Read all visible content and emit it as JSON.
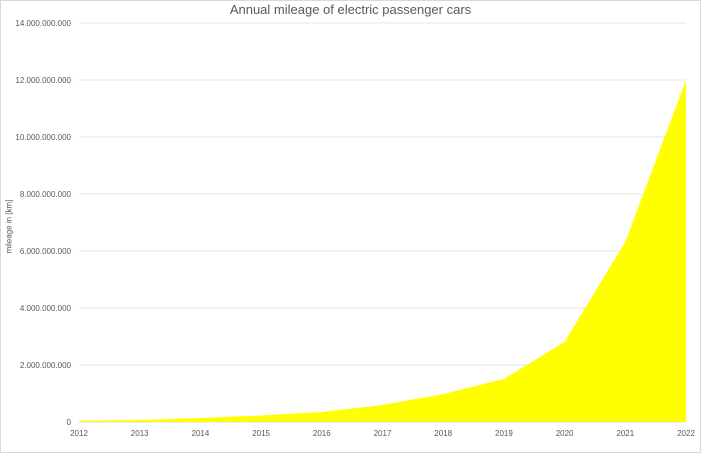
{
  "chart_data": {
    "type": "area",
    "title": "Annual mileage of electric passenger cars",
    "xlabel": "",
    "ylabel": "mileage in [km]",
    "categories": [
      "2012",
      "2013",
      "2014",
      "2015",
      "2016",
      "2017",
      "2018",
      "2019",
      "2020",
      "2021",
      "2022"
    ],
    "series": [
      {
        "name": "Annual mileage",
        "color": "#ffff00",
        "values": [
          40000000,
          70000000,
          140000000,
          230000000,
          350000000,
          600000000,
          980000000,
          1510000000,
          2810000000,
          6320000000,
          12000000000
        ]
      }
    ],
    "ylim": [
      0,
      14000000000
    ],
    "yticks": [
      0,
      2000000000,
      4000000000,
      6000000000,
      8000000000,
      10000000000,
      12000000000,
      14000000000
    ],
    "ytick_labels": [
      "0",
      "2.000.000.000",
      "4.000.000.000",
      "6.000.000.000",
      "8.000.000.000",
      "10.000.000.000",
      "12.000.000.000",
      "14.000.000.000"
    ],
    "grid": true,
    "legend": "none"
  }
}
